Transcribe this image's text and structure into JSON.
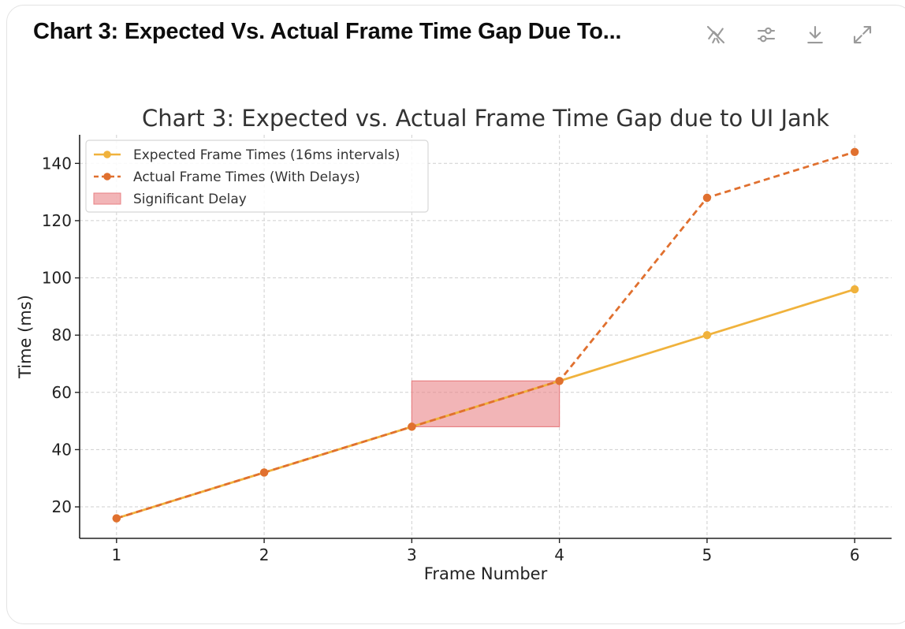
{
  "header": {
    "title": "Chart 3: Expected Vs. Actual Frame Time Gap Due To..."
  },
  "toolbar": {
    "icons": [
      "chart-type-toggle-icon",
      "sliders-icon",
      "download-icon",
      "expand-icon"
    ]
  },
  "chart_data": {
    "type": "line",
    "title": "Chart 3: Expected vs. Actual Frame Time Gap due to UI Jank",
    "xlabel": "Frame Number",
    "ylabel": "Time (ms)",
    "x": [
      1,
      2,
      3,
      4,
      5,
      6
    ],
    "xlim": [
      0.75,
      6.25
    ],
    "ylim": [
      9,
      150
    ],
    "x_ticks": [
      1,
      2,
      3,
      4,
      5,
      6
    ],
    "y_ticks": [
      20,
      40,
      60,
      80,
      100,
      120,
      140
    ],
    "grid": true,
    "legend_position": "top-left",
    "series": [
      {
        "name": "Expected Frame Times (16ms intervals)",
        "values": [
          16,
          32,
          48,
          64,
          80,
          96
        ],
        "color": "#F0B23C",
        "style": "solid",
        "marker": "circle"
      },
      {
        "name": "Actual Frame Times (With Delays)",
        "values": [
          16,
          32,
          48,
          64,
          128,
          144
        ],
        "color": "#E0702F",
        "style": "dashed",
        "marker": "circle"
      }
    ],
    "shaded_regions": [
      {
        "name": "Significant Delay",
        "x_range": [
          3,
          4
        ],
        "y_range": [
          48,
          64
        ],
        "color": "#E88083"
      }
    ]
  }
}
